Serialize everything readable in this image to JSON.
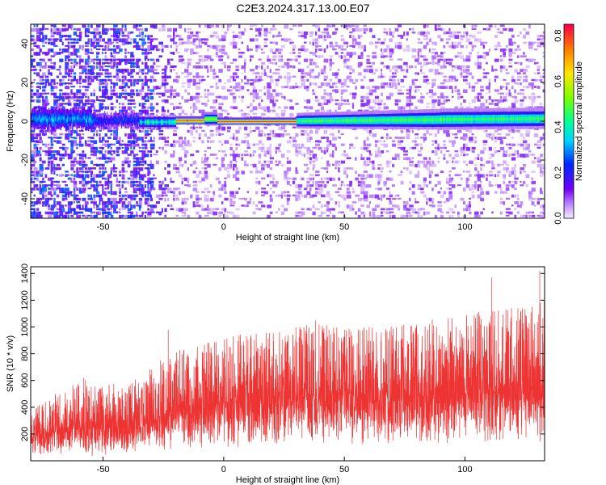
{
  "title": "C2E3.2024.317.13.00.E07",
  "chart_data": [
    {
      "type": "heatmap",
      "xlabel": "Height of straight line (km)",
      "ylabel": "Frequency (Hz)",
      "xlim": [
        -80,
        133
      ],
      "ylim": [
        -50,
        50
      ],
      "xticks": [
        -50,
        0,
        50,
        100
      ],
      "yticks": [
        -40,
        -20,
        0,
        20,
        40
      ],
      "colorbar": {
        "label": "Normalized spectral amplitude",
        "range": [
          0.0,
          0.85
        ],
        "ticks": [
          "0.0",
          "0.2",
          "0.4",
          "0.6",
          "0.8"
        ]
      },
      "ridge": {
        "frequency_hz": 0,
        "strong_from_km": -20,
        "strong_to_km": 30
      }
    },
    {
      "type": "line",
      "xlabel": "Height of straight line (km)",
      "ylabel": "SNR (10 * v/v)",
      "xlim": [
        -80,
        133
      ],
      "ylim": [
        0,
        1450
      ],
      "xticks": [
        -50,
        0,
        50,
        100
      ],
      "yticks": [
        200,
        400,
        600,
        800,
        1000,
        1200,
        1400
      ],
      "color": "#ee3333",
      "envelope": {
        "x": [
          -80,
          -60,
          -40,
          -30,
          -20,
          0,
          20,
          40,
          60,
          80,
          100,
          120,
          133
        ],
        "upper": [
          380,
          620,
          560,
          720,
          820,
          920,
          1000,
          1020,
          1000,
          1040,
          1100,
          1150,
          1200
        ],
        "median": [
          180,
          260,
          200,
          300,
          380,
          430,
          470,
          500,
          470,
          480,
          510,
          520,
          520
        ],
        "lower": [
          20,
          30,
          40,
          60,
          80,
          90,
          100,
          100,
          90,
          90,
          100,
          110,
          90
        ]
      },
      "peaks": [
        [
          -75,
          420
        ],
        [
          -58,
          620
        ],
        [
          -23,
          980
        ],
        [
          38,
          1050
        ],
        [
          105,
          1100
        ],
        [
          111,
          1370
        ],
        [
          131,
          1420
        ]
      ]
    }
  ]
}
